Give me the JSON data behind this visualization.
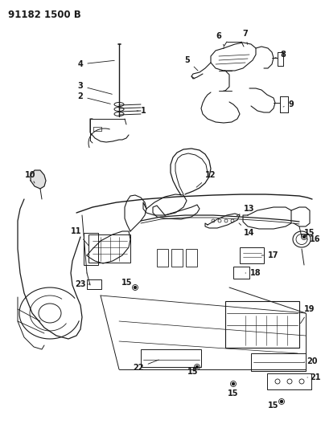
{
  "title": "91182 1500 B",
  "bg_color": "#ffffff",
  "line_color": "#1a1a1a",
  "label_color": "#111111",
  "label_fontsize": 7,
  "figsize": [
    3.99,
    5.33
  ],
  "dpi": 100
}
